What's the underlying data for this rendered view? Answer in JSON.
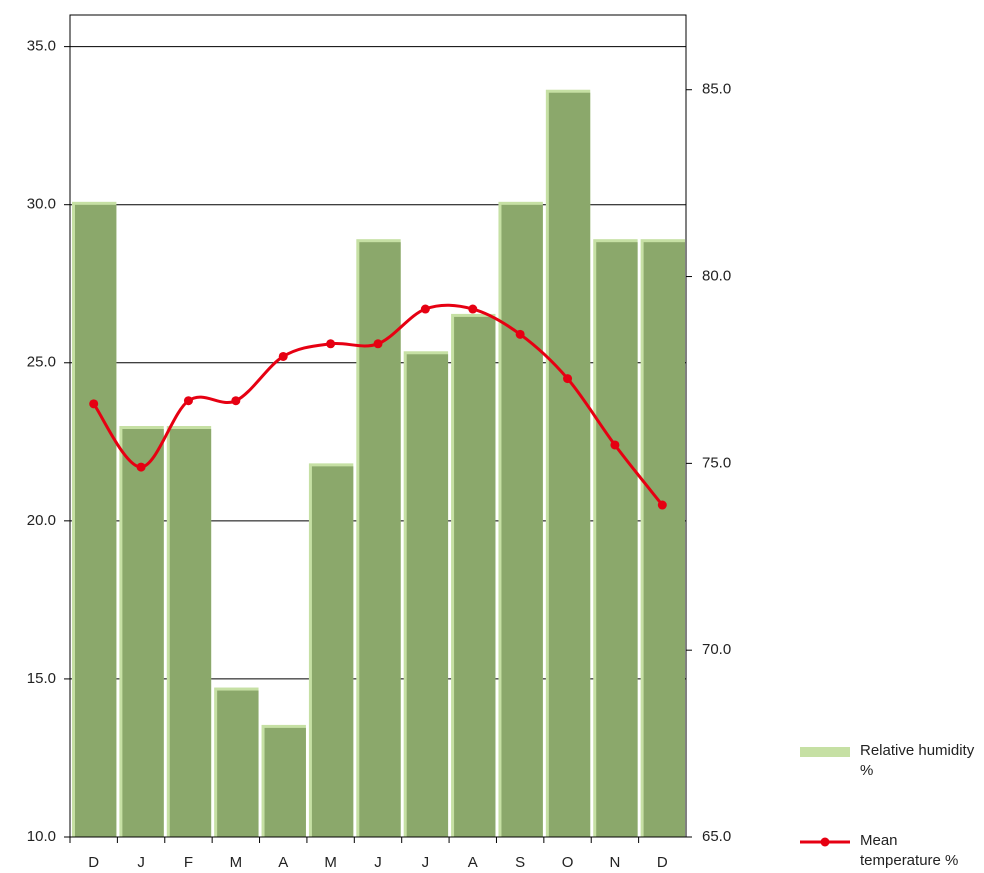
{
  "chart_data": {
    "type": "bar-line",
    "categories": [
      "D",
      "J",
      "F",
      "M",
      "A",
      "M",
      "J",
      "J",
      "A",
      "S",
      "O",
      "N",
      "D"
    ],
    "series": [
      {
        "name": "Relative humidity %",
        "type": "bar",
        "axis": "y2",
        "color": "#8ba86b",
        "values": [
          82,
          76,
          76,
          69,
          68,
          75,
          81,
          78,
          79,
          82,
          85,
          81,
          81
        ]
      },
      {
        "name": "Mean temperature %",
        "type": "line",
        "color": "#e60012",
        "values": [
          23.7,
          21.7,
          23.8,
          23.8,
          25.2,
          25.6,
          25.6,
          26.7,
          26.7,
          25.9,
          24.5,
          22.4,
          20.5
        ]
      }
    ],
    "ylim": [
      10,
      36
    ],
    "yticks": [
      {
        "value": 10,
        "label": "10.0"
      },
      {
        "value": 15,
        "label": "15.0"
      },
      {
        "value": 20,
        "label": "20.0"
      },
      {
        "value": 25,
        "label": "25.0"
      },
      {
        "value": 30,
        "label": "30.0"
      },
      {
        "value": 35,
        "label": "35.0"
      }
    ],
    "y2lim": [
      65,
      87
    ],
    "y2ticks": [
      {
        "value": 65,
        "label": "65.0"
      },
      {
        "value": 70,
        "label": "70.0"
      },
      {
        "value": 75,
        "label": "75.0"
      },
      {
        "value": 80,
        "label": "80.0"
      },
      {
        "value": 85,
        "label": "85.0"
      }
    ],
    "grid": true
  }
}
